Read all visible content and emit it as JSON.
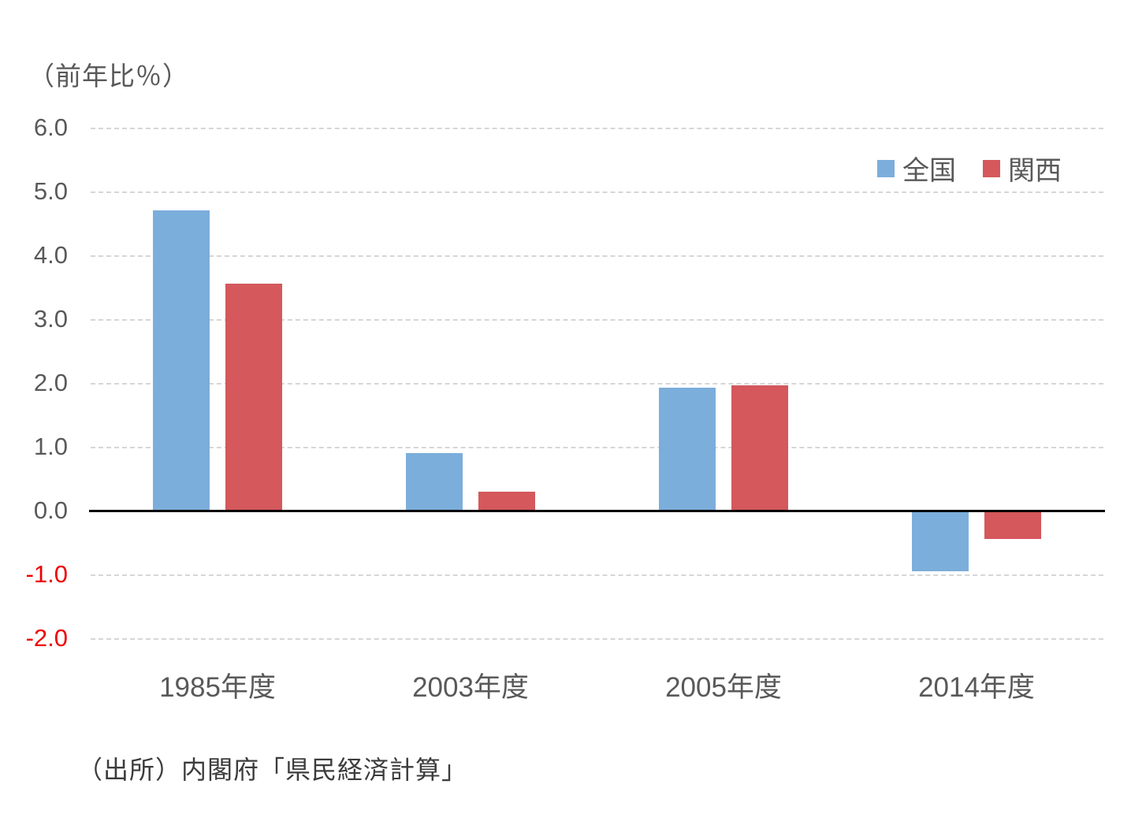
{
  "page": {
    "background_color": "#ffffff"
  },
  "header": {
    "unit_label": "（前年比％）"
  },
  "footer": {
    "source_note": "（出所）内閣府「県民経済計算」"
  },
  "chart_data": {
    "type": "bar",
    "title": "",
    "unit_label": "（前年比％）",
    "categories": [
      "1985年度",
      "2003年度",
      "2005年度",
      "2014年度"
    ],
    "series": [
      {
        "name": "全国",
        "color": "#7CAEDB",
        "values": [
          4.7,
          0.9,
          1.93,
          -0.95
        ]
      },
      {
        "name": "関西",
        "color": "#D4585C",
        "values": [
          3.55,
          0.3,
          1.96,
          -0.45
        ]
      }
    ],
    "xlabel": "",
    "ylabel": "前年比％",
    "ylim": [
      -2.0,
      6.0
    ],
    "ytick_step": 1.0,
    "yticks": [
      6.0,
      5.0,
      4.0,
      3.0,
      2.0,
      1.0,
      0.0,
      -1.0,
      -2.0
    ],
    "ytick_labels": [
      "6.0",
      "5.0",
      "4.0",
      "3.0",
      "2.0",
      "1.0",
      "0.0",
      "-1.0",
      "-2.0"
    ],
    "grid": true,
    "gridline_style": "dashed",
    "gridline_color": "#d6d6d6",
    "zero_axis_color": "#000000",
    "tick_label_color": "#595959",
    "negative_tick_label_color": "#ee0000",
    "legend_position": "top-right",
    "legend": [
      {
        "label": "全国",
        "color": "#7CAEDB"
      },
      {
        "label": "関西",
        "color": "#D4585C"
      }
    ],
    "source": "（出所）内閣府「県民経済計算」"
  }
}
